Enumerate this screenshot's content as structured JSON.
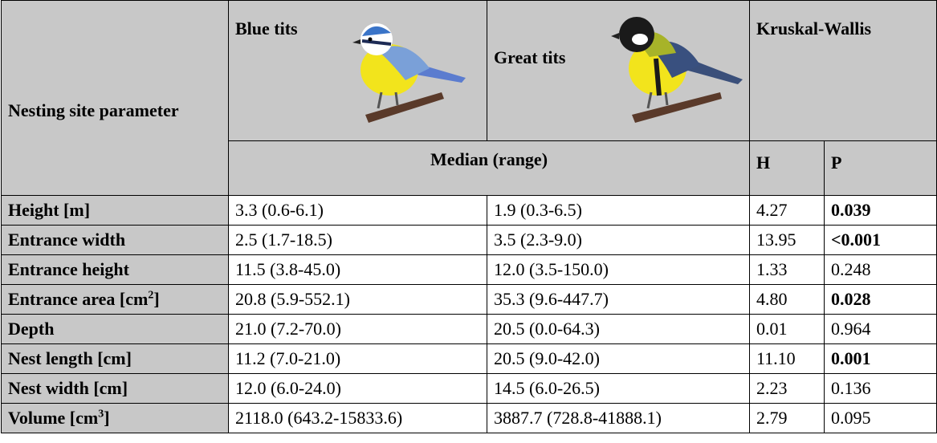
{
  "header": {
    "parameter": "Nesting site parameter",
    "species": [
      "Blue tits",
      "Great tits"
    ],
    "test": "Kruskal-Wallis",
    "median": "Median (range)",
    "stats": [
      "H",
      "P"
    ]
  },
  "rows": [
    {
      "parameter": {
        "text": "Height [m]"
      },
      "blue": "3.3 (0.6-6.1)",
      "great": "1.9 (0.3-6.5)",
      "H": "4.27",
      "P": "0.039",
      "p_bold": true
    },
    {
      "parameter": {
        "text": "Entrance width"
      },
      "blue": "2.5 (1.7-18.5)",
      "great": "3.5 (2.3-9.0)",
      "H": "13.95",
      "P": "<0.001",
      "p_bold": true
    },
    {
      "parameter": {
        "text": "Entrance height"
      },
      "blue": "11.5 (3.8-45.0)",
      "great": "12.0 (3.5-150.0)",
      "H": "1.33",
      "P": "0.248",
      "p_bold": false
    },
    {
      "parameter": {
        "text": "Entrance area [cm",
        "sup": "2",
        "after": "]"
      },
      "blue": "20.8 (5.9-552.1)",
      "great": "35.3 (9.6-447.7)",
      "H": "4.80",
      "P": "0.028",
      "p_bold": true
    },
    {
      "parameter": {
        "text": "Depth"
      },
      "blue": "21.0 (7.2-70.0)",
      "great": "20.5 (0.0-64.3)",
      "H": "0.01",
      "P": "0.964",
      "p_bold": false
    },
    {
      "parameter": {
        "text": "Nest length [cm]"
      },
      "blue": "11.2 (7.0-21.0)",
      "great": "20.5 (9.0-42.0)",
      "H": "11.10",
      "P": "0.001",
      "p_bold": true
    },
    {
      "parameter": {
        "text": "Nest width [cm]"
      },
      "blue": "12.0 (6.0-24.0)",
      "great": "14.5 (6.0-26.5)",
      "H": "2.23",
      "P": "0.136",
      "p_bold": false
    },
    {
      "parameter": {
        "text": "Volume [cm",
        "sup": "3",
        "after": "]"
      },
      "blue": "2118.0 (643.2-15833.6)",
      "great": "3887.7 (728.8-41888.1)",
      "H": "2.79",
      "P": "0.095",
      "p_bold": false
    }
  ]
}
